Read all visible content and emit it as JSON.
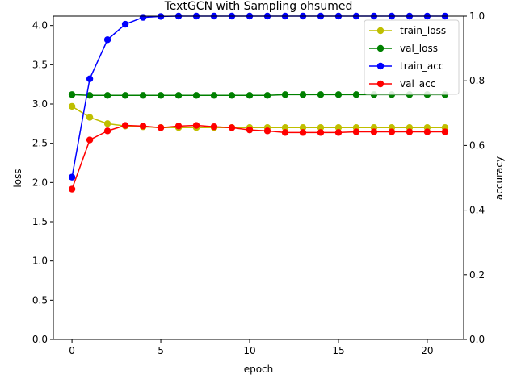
{
  "chart_data": {
    "type": "line",
    "title": "TextGCN with Sampling ohsumed",
    "xlabel": "epoch",
    "ylabel_left": "loss",
    "ylabel_right": "accuracy",
    "x": [
      0,
      1,
      2,
      3,
      4,
      5,
      6,
      7,
      8,
      9,
      10,
      11,
      12,
      13,
      14,
      15,
      16,
      17,
      18,
      19,
      20,
      21
    ],
    "xlim": [
      -1.05,
      22.05
    ],
    "ylim_left": [
      0,
      4.12
    ],
    "ylim_right": [
      0,
      1.0
    ],
    "xticks": [
      0,
      5,
      10,
      15,
      20
    ],
    "yticks_left": [
      0.0,
      0.5,
      1.0,
      1.5,
      2.0,
      2.5,
      3.0,
      3.5,
      4.0
    ],
    "ytick_labels_left": [
      "0.0",
      "0.5",
      "1.0",
      "1.5",
      "2.0",
      "2.5",
      "3.0",
      "3.5",
      "4.0"
    ],
    "yticks_right": [
      0.0,
      0.2,
      0.4,
      0.6,
      0.8,
      1.0
    ],
    "ytick_labels_right": [
      "0.0",
      "0.2",
      "0.4",
      "0.6",
      "0.8",
      "1.0"
    ],
    "legend_position": "top-right",
    "grid": false,
    "series": [
      {
        "name": "train_loss",
        "axis": "left",
        "color": "#bfbf00",
        "values": [
          2.97,
          2.83,
          2.75,
          2.72,
          2.71,
          2.7,
          2.7,
          2.7,
          2.7,
          2.7,
          2.7,
          2.7,
          2.7,
          2.7,
          2.7,
          2.7,
          2.7,
          2.7,
          2.7,
          2.7,
          2.7,
          2.7
        ]
      },
      {
        "name": "val_loss",
        "axis": "left",
        "color": "#008000",
        "values": [
          3.12,
          3.11,
          3.11,
          3.11,
          3.11,
          3.11,
          3.11,
          3.11,
          3.11,
          3.11,
          3.11,
          3.11,
          3.12,
          3.12,
          3.12,
          3.12,
          3.12,
          3.12,
          3.12,
          3.12,
          3.12,
          3.12
        ]
      },
      {
        "name": "train_acc",
        "axis": "right",
        "color": "#0000ff",
        "values": [
          0.502,
          0.806,
          0.927,
          0.975,
          0.996,
          0.999,
          1.0,
          1.0,
          1.0,
          1.0,
          1.0,
          1.0,
          1.0,
          1.0,
          1.0,
          1.0,
          1.0,
          1.0,
          1.0,
          1.0,
          1.0,
          1.0
        ]
      },
      {
        "name": "val_acc",
        "axis": "right",
        "color": "#ff0000",
        "values": [
          0.465,
          0.617,
          0.645,
          0.662,
          0.66,
          0.655,
          0.66,
          0.662,
          0.658,
          0.655,
          0.648,
          0.645,
          0.64,
          0.64,
          0.64,
          0.64,
          0.642,
          0.642,
          0.642,
          0.642,
          0.642,
          0.642
        ]
      }
    ]
  }
}
